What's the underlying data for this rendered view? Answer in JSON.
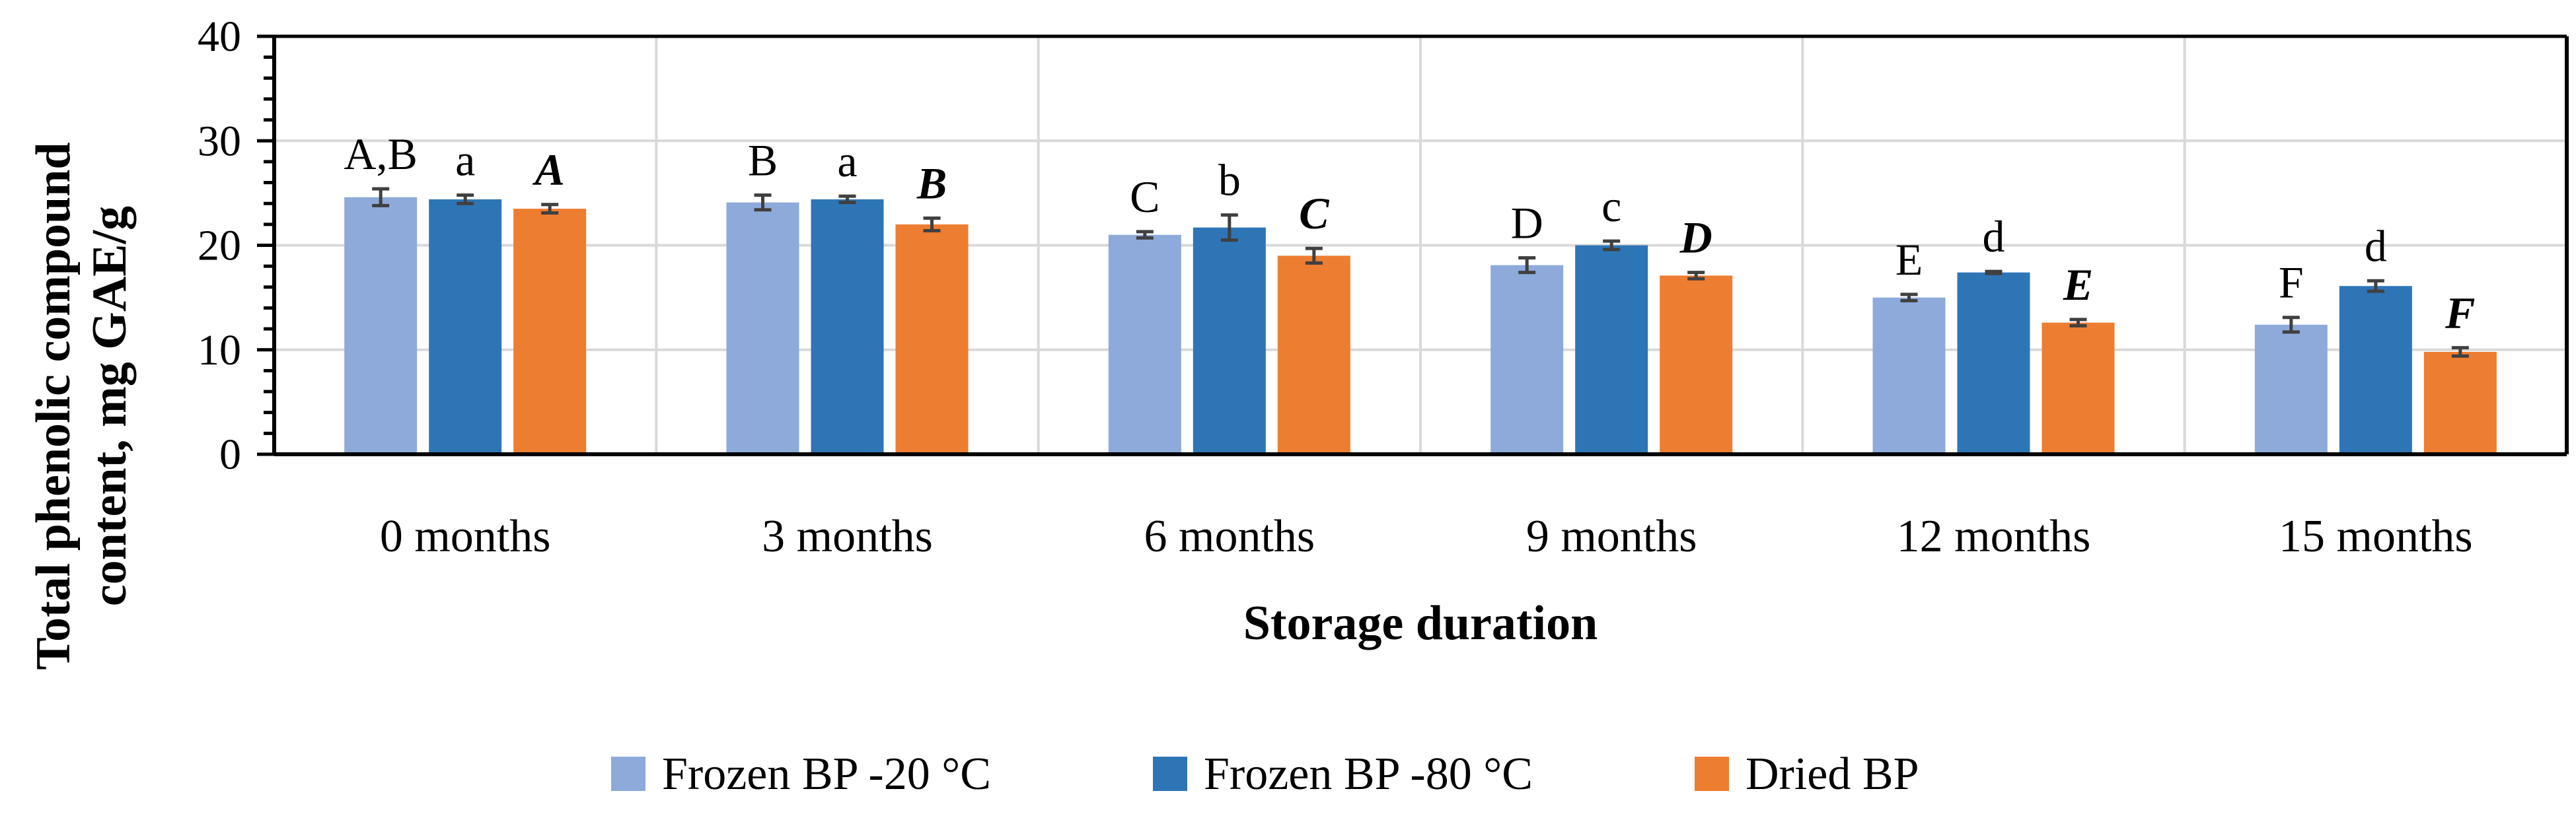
{
  "chart_data": {
    "type": "bar",
    "title": "",
    "xlabel": "Storage duration",
    "ylabel_lines": [
      "Total phenolic compound",
      "content, mg GAE/g"
    ],
    "ylim": [
      0,
      40
    ],
    "yticks": [
      0,
      10,
      20,
      30,
      40
    ],
    "grid": true,
    "legend_position": "bottom",
    "categories": [
      "0 months",
      "3 months",
      "6 months",
      "9 months",
      "12 months",
      "15 months"
    ],
    "series": [
      {
        "name": "Frozen BP -20 °C",
        "color": "#8eaadb",
        "values": [
          24.6,
          24.1,
          21.0,
          18.1,
          15.0,
          12.4
        ],
        "errors": [
          0.8,
          0.7,
          0.3,
          0.7,
          0.3,
          0.7
        ],
        "labels": [
          "A,B",
          "B",
          "C",
          "D",
          "E",
          "F"
        ],
        "label_style": "normal"
      },
      {
        "name": "Frozen BP -80 °C",
        "color": "#2e75b6",
        "values": [
          24.4,
          24.4,
          21.7,
          20.0,
          17.4,
          16.1
        ],
        "errors": [
          0.4,
          0.3,
          1.2,
          0.4,
          0.1,
          0.5
        ],
        "labels": [
          "a",
          "a",
          "b",
          "c",
          "d",
          "d"
        ],
        "label_style": "normal"
      },
      {
        "name": "Dried BP",
        "color": "#ed7d31",
        "values": [
          23.5,
          22.0,
          19.0,
          17.1,
          12.6,
          9.8
        ],
        "errors": [
          0.4,
          0.6,
          0.7,
          0.3,
          0.3,
          0.4
        ],
        "labels": [
          "A",
          "B",
          "C",
          "D",
          "E",
          "F"
        ],
        "label_style": "bold-italic"
      }
    ]
  }
}
